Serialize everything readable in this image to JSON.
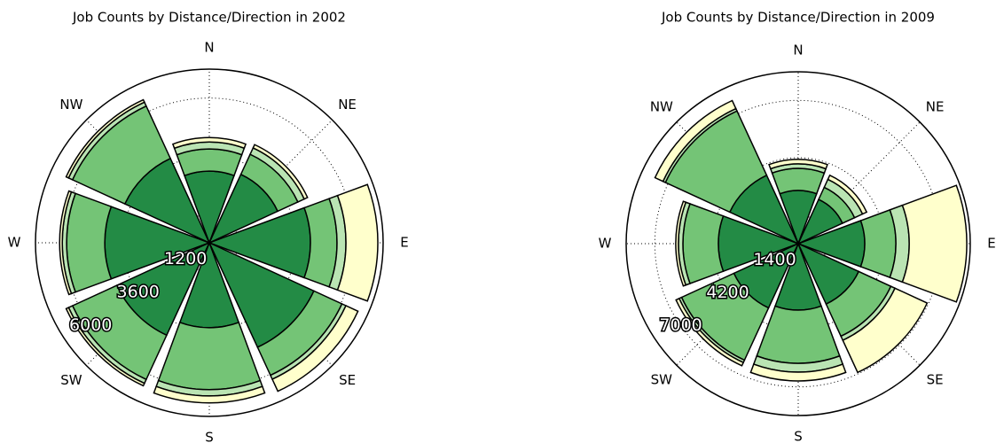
{
  "chart_data": [
    {
      "type": "polar_stacked_bar",
      "title": "Job Counts by Distance/Direction in 2002",
      "categories": [
        "N",
        "NE",
        "E",
        "SE",
        "S",
        "SW",
        "W",
        "NW"
      ],
      "series": [
        {
          "color": "#238b45",
          "values": [
            2970,
            3120,
            4190,
            4770,
            3520,
            4220,
            4330,
            3850
          ]
        },
        {
          "color": "#74c476",
          "values": [
            920,
            920,
            1100,
            1280,
            2570,
            2020,
            1580,
            2390
          ]
        },
        {
          "color": "#bae4b3",
          "values": [
            290,
            290,
            370,
            180,
            260,
            180,
            180,
            180
          ]
        },
        {
          "color": "#ffffcc",
          "values": [
            180,
            150,
            1320,
            550,
            290,
            110,
            110,
            110
          ]
        }
      ],
      "ylim": [
        0,
        7200
      ],
      "yticks": [
        1200,
        3600,
        6000
      ],
      "grid": true
    },
    {
      "type": "polar_stacked_bar",
      "title": "Job Counts by Distance/Direction in 2009",
      "categories": [
        "N",
        "NE",
        "E",
        "SE",
        "S",
        "SW",
        "W",
        "NW"
      ],
      "series": [
        {
          "color": "#238b45",
          "values": [
            2600,
            2380,
            3250,
            3250,
            3250,
            3460,
            3900,
            3680
          ]
        },
        {
          "color": "#74c476",
          "values": [
            1080,
            650,
            1520,
            1730,
            2600,
            2810,
            1730,
            3460
          ]
        },
        {
          "color": "#bae4b3",
          "values": [
            220,
            430,
            650,
            220,
            430,
            130,
            220,
            130
          ]
        },
        {
          "color": "#ffffcc",
          "values": [
            220,
            220,
            2810,
            1730,
            430,
            170,
            130,
            430
          ]
        }
      ],
      "ylim": [
        0,
        8400
      ],
      "yticks": [
        1400,
        4200,
        7000
      ],
      "grid": true
    }
  ]
}
